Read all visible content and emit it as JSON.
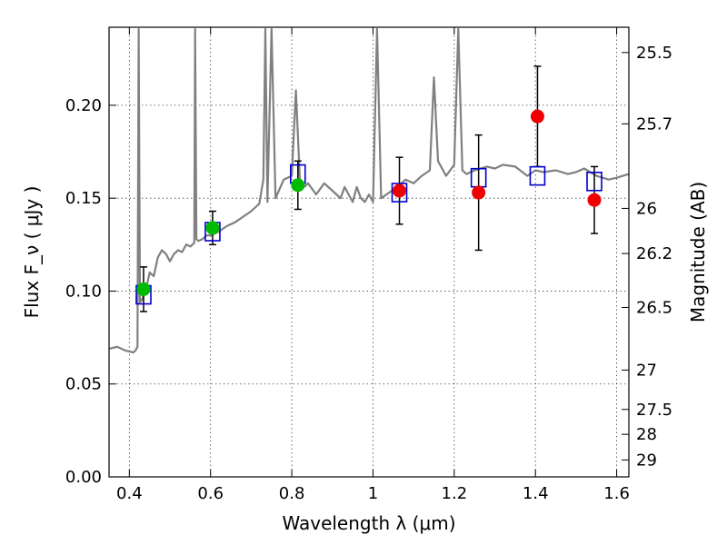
{
  "chart_data": {
    "type": "scatter",
    "xlabel": "Wavelength  λ (μm)",
    "ylabel": "Flux  F_ν  ( μJy )",
    "ylabel_right": "Magnitude (AB)",
    "xlim": [
      0.35,
      1.63
    ],
    "ylim": [
      0.0,
      0.242
    ],
    "grid": true,
    "x_ticks": [
      {
        "value": 0.4,
        "label": "0.4"
      },
      {
        "value": 0.6,
        "label": "0.6"
      },
      {
        "value": 0.8,
        "label": "0.8"
      },
      {
        "value": 1.0,
        "label": "1"
      },
      {
        "value": 1.2,
        "label": "1.2"
      },
      {
        "value": 1.4,
        "label": "1.4"
      },
      {
        "value": 1.6,
        "label": "1.6"
      }
    ],
    "y_ticks": [
      {
        "value": 0.0,
        "label": "0.00"
      },
      {
        "value": 0.05,
        "label": "0.05"
      },
      {
        "value": 0.1,
        "label": "0.10"
      },
      {
        "value": 0.15,
        "label": "0.15"
      },
      {
        "value": 0.2,
        "label": "0.20"
      }
    ],
    "right_ticks": [
      {
        "flux": 0.2284,
        "label": "25.5"
      },
      {
        "flux": 0.19,
        "label": "25.7"
      },
      {
        "flux": 0.1445,
        "label": "26"
      },
      {
        "flux": 0.1202,
        "label": "26.2"
      },
      {
        "flux": 0.0912,
        "label": "26.5"
      },
      {
        "flux": 0.0575,
        "label": "27"
      },
      {
        "flux": 0.0363,
        "label": "27.5"
      },
      {
        "flux": 0.0229,
        "label": "28"
      },
      {
        "flux": 0.0091,
        "label": "29"
      }
    ],
    "model_spectrum": {
      "color": "#808080",
      "x": [
        0.35,
        0.37,
        0.39,
        0.41,
        0.415,
        0.42,
        0.423,
        0.426,
        0.43,
        0.44,
        0.45,
        0.46,
        0.47,
        0.48,
        0.49,
        0.5,
        0.51,
        0.52,
        0.53,
        0.54,
        0.55,
        0.56,
        0.562,
        0.565,
        0.57,
        0.58,
        0.59,
        0.6,
        0.62,
        0.64,
        0.66,
        0.68,
        0.7,
        0.72,
        0.73,
        0.735,
        0.74,
        0.75,
        0.76,
        0.77,
        0.78,
        0.8,
        0.81,
        0.82,
        0.83,
        0.84,
        0.86,
        0.88,
        0.9,
        0.92,
        0.93,
        0.94,
        0.95,
        0.96,
        0.97,
        0.98,
        0.99,
        1.0,
        1.01,
        1.02,
        1.04,
        1.06,
        1.08,
        1.1,
        1.12,
        1.14,
        1.15,
        1.16,
        1.18,
        1.2,
        1.21,
        1.22,
        1.23,
        1.25,
        1.28,
        1.3,
        1.32,
        1.35,
        1.38,
        1.4,
        1.42,
        1.45,
        1.48,
        1.5,
        1.52,
        1.55,
        1.58,
        1.6,
        1.63
      ],
      "y": [
        0.069,
        0.07,
        0.068,
        0.067,
        0.068,
        0.07,
        0.241,
        0.094,
        0.095,
        0.1,
        0.11,
        0.108,
        0.118,
        0.122,
        0.12,
        0.116,
        0.12,
        0.122,
        0.121,
        0.125,
        0.124,
        0.126,
        0.241,
        0.128,
        0.127,
        0.128,
        0.13,
        0.13,
        0.132,
        0.135,
        0.137,
        0.14,
        0.143,
        0.147,
        0.16,
        0.241,
        0.148,
        0.241,
        0.15,
        0.155,
        0.16,
        0.162,
        0.208,
        0.16,
        0.156,
        0.158,
        0.152,
        0.158,
        0.154,
        0.15,
        0.156,
        0.152,
        0.148,
        0.156,
        0.15,
        0.148,
        0.152,
        0.148,
        0.241,
        0.15,
        0.153,
        0.156,
        0.16,
        0.158,
        0.162,
        0.165,
        0.215,
        0.17,
        0.162,
        0.168,
        0.241,
        0.165,
        0.163,
        0.165,
        0.167,
        0.166,
        0.168,
        0.167,
        0.162,
        0.165,
        0.164,
        0.165,
        0.163,
        0.164,
        0.166,
        0.162,
        0.16,
        0.161,
        0.163
      ]
    },
    "series": [
      {
        "marker": "circle",
        "color": "#00bb00",
        "x": [
          0.435,
          0.605,
          0.815
        ],
        "y": [
          0.101,
          0.134,
          0.157
        ],
        "yerr": [
          0.012,
          0.009,
          0.013
        ]
      },
      {
        "marker": "circle",
        "color": "#ee0000",
        "x": [
          1.065,
          1.26,
          1.405,
          1.545
        ],
        "y": [
          0.154,
          0.153,
          0.194,
          0.149
        ],
        "yerr": [
          0.018,
          0.031,
          0.027,
          0.018
        ]
      },
      {
        "marker": "open-square",
        "color": "#0000cc",
        "x": [
          0.435,
          0.605,
          0.815,
          1.065,
          1.26,
          1.405,
          1.545
        ],
        "y": [
          0.098,
          0.132,
          0.163,
          0.153,
          0.161,
          0.162,
          0.159
        ]
      }
    ]
  }
}
